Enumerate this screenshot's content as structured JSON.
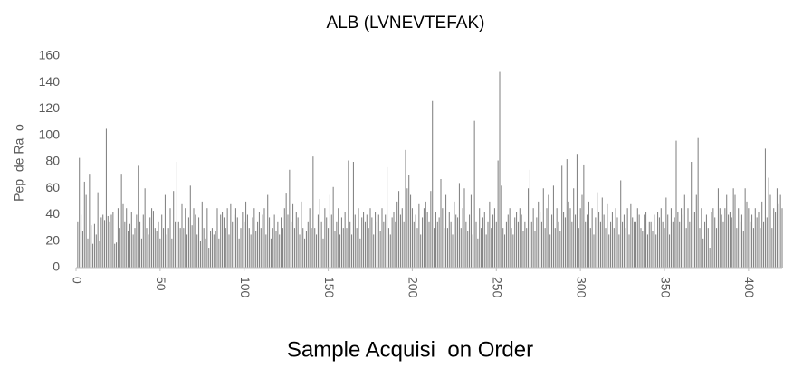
{
  "chart_data": {
    "type": "bar",
    "title": "ALB (LVNEVTEFAK)",
    "x_label": "Sample Acquisi  on Order",
    "y_label": "Pep  de Ra  o",
    "color": "#7f7f7f",
    "grid": false,
    "xlim": [
      0,
      420
    ],
    "xticks": [
      0,
      50,
      100,
      150,
      200,
      250,
      300,
      350,
      400
    ],
    "ylim": [
      0,
      160
    ],
    "yticks": [
      0,
      20,
      40,
      60,
      80,
      100,
      120,
      140,
      160
    ],
    "x": [
      1,
      2,
      3,
      4,
      5,
      6,
      7,
      8,
      9,
      10,
      11,
      12,
      13,
      14,
      15,
      16,
      17,
      18,
      19,
      20,
      21,
      22,
      23,
      24,
      25,
      26,
      27,
      28,
      29,
      30,
      31,
      32,
      33,
      34,
      35,
      36,
      37,
      38,
      39,
      40,
      41,
      42,
      43,
      44,
      45,
      46,
      47,
      48,
      49,
      50,
      51,
      52,
      53,
      54,
      55,
      56,
      57,
      58,
      59,
      60,
      61,
      62,
      63,
      64,
      65,
      66,
      67,
      68,
      69,
      70,
      71,
      72,
      73,
      74,
      75,
      76,
      77,
      78,
      79,
      80,
      81,
      82,
      83,
      84,
      85,
      86,
      87,
      88,
      89,
      90,
      91,
      92,
      93,
      94,
      95,
      96,
      97,
      98,
      99,
      100,
      101,
      102,
      103,
      104,
      105,
      106,
      107,
      108,
      109,
      110,
      111,
      112,
      113,
      114,
      115,
      116,
      117,
      118,
      119,
      120,
      121,
      122,
      123,
      124,
      125,
      126,
      127,
      128,
      129,
      130,
      131,
      132,
      133,
      134,
      135,
      136,
      137,
      138,
      139,
      140,
      141,
      142,
      143,
      144,
      145,
      146,
      147,
      148,
      149,
      150,
      151,
      152,
      153,
      154,
      155,
      156,
      157,
      158,
      159,
      160,
      161,
      162,
      163,
      164,
      165,
      166,
      167,
      168,
      169,
      170,
      171,
      172,
      173,
      174,
      175,
      176,
      177,
      178,
      179,
      180,
      181,
      182,
      183,
      184,
      185,
      186,
      187,
      188,
      189,
      190,
      191,
      192,
      193,
      194,
      195,
      196,
      197,
      198,
      199,
      200,
      201,
      202,
      203,
      204,
      205,
      206,
      207,
      208,
      209,
      210,
      211,
      212,
      213,
      214,
      215,
      216,
      217,
      218,
      219,
      220,
      221,
      222,
      223,
      224,
      225,
      226,
      227,
      228,
      229,
      230,
      231,
      232,
      233,
      234,
      235,
      236,
      237,
      238,
      239,
      240,
      241,
      242,
      243,
      244,
      245,
      246,
      247,
      248,
      249,
      250,
      251,
      252,
      253,
      254,
      255,
      256,
      257,
      258,
      259,
      260,
      261,
      262,
      263,
      264,
      265,
      266,
      267,
      268,
      269,
      270,
      271,
      272,
      273,
      274,
      275,
      276,
      277,
      278,
      279,
      280,
      281,
      282,
      283,
      284,
      285,
      286,
      287,
      288,
      289,
      290,
      291,
      292,
      293,
      294,
      295,
      296,
      297,
      298,
      299,
      300,
      301,
      302,
      303,
      304,
      305,
      306,
      307,
      308,
      309,
      310,
      311,
      312,
      313,
      314,
      315,
      316,
      317,
      318,
      319,
      320,
      321,
      322,
      323,
      324,
      325,
      326,
      327,
      328,
      329,
      330,
      331,
      332,
      333,
      334,
      335,
      336,
      337,
      338,
      339,
      340,
      341,
      342,
      343,
      344,
      345,
      346,
      347,
      348,
      349,
      350,
      351,
      352,
      353,
      354,
      355,
      356,
      357,
      358,
      359,
      360,
      361,
      362,
      363,
      364,
      365,
      366,
      367,
      368,
      369,
      370,
      371,
      372,
      373,
      374,
      375,
      376,
      377,
      378,
      379,
      380,
      381,
      382,
      383,
      384,
      385,
      386,
      387,
      388,
      389,
      390,
      391,
      392,
      393,
      394,
      395,
      396,
      397,
      398,
      399,
      400,
      401,
      402,
      403,
      404,
      405,
      406,
      407,
      408,
      409,
      410,
      411,
      412,
      413,
      414,
      415,
      416,
      417,
      418,
      419,
      420
    ],
    "values": [
      35,
      83,
      40,
      28,
      65,
      55,
      22,
      71,
      32,
      18,
      33,
      25,
      57,
      20,
      38,
      40,
      36,
      105,
      39,
      35,
      40,
      42,
      18,
      19,
      45,
      30,
      71,
      48,
      35,
      45,
      28,
      33,
      42,
      25,
      30,
      40,
      77,
      35,
      22,
      40,
      60,
      30,
      25,
      38,
      45,
      43,
      30,
      28,
      35,
      22,
      40,
      30,
      55,
      25,
      30,
      45,
      22,
      58,
      35,
      80,
      35,
      30,
      48,
      30,
      45,
      25,
      38,
      62,
      32,
      45,
      40,
      25,
      38,
      20,
      50,
      30,
      22,
      45,
      15,
      28,
      30,
      25,
      28,
      45,
      22,
      40,
      42,
      38,
      30,
      45,
      25,
      48,
      35,
      40,
      45,
      38,
      22,
      30,
      42,
      35,
      50,
      40,
      30,
      25,
      38,
      45,
      28,
      35,
      42,
      30,
      40,
      45,
      25,
      55,
      38,
      22,
      30,
      40,
      28,
      35,
      25,
      38,
      30,
      45,
      56,
      40,
      74,
      35,
      48,
      30,
      42,
      38,
      25,
      50,
      30,
      22,
      28,
      35,
      45,
      30,
      84,
      30,
      25,
      40,
      52,
      35,
      22,
      45,
      38,
      30,
      55,
      40,
      61,
      28,
      35,
      45,
      25,
      38,
      30,
      42,
      30,
      81,
      35,
      25,
      80,
      40,
      30,
      45,
      22,
      38,
      42,
      35,
      40,
      30,
      45,
      38,
      25,
      42,
      35,
      40,
      28,
      45,
      35,
      40,
      76,
      30,
      25,
      38,
      42,
      35,
      50,
      58,
      40,
      45,
      35,
      89,
      60,
      70,
      55,
      45,
      35,
      40,
      30,
      48,
      25,
      38,
      45,
      50,
      42,
      35,
      58,
      126,
      30,
      42,
      35,
      38,
      67,
      45,
      30,
      55,
      30,
      42,
      35,
      25,
      50,
      40,
      38,
      64,
      30,
      45,
      60,
      35,
      28,
      40,
      55,
      25,
      111,
      35,
      22,
      45,
      30,
      38,
      42,
      25,
      35,
      50,
      30,
      40,
      45,
      35,
      81,
      148,
      62,
      30,
      25,
      35,
      40,
      45,
      30,
      25,
      38,
      42,
      35,
      45,
      40,
      28,
      35,
      30,
      60,
      74,
      35,
      45,
      28,
      38,
      50,
      42,
      35,
      60,
      30,
      45,
      55,
      25,
      40,
      62,
      30,
      45,
      35,
      28,
      77,
      42,
      38,
      82,
      50,
      45,
      35,
      60,
      40,
      86,
      30,
      45,
      55,
      78,
      35,
      40,
      50,
      30,
      45,
      25,
      38,
      57,
      42,
      35,
      53,
      40,
      30,
      48,
      25,
      35,
      42,
      30,
      45,
      38,
      25,
      66,
      35,
      40,
      30,
      45,
      25,
      48,
      38,
      35,
      35,
      45,
      40,
      30,
      28,
      40,
      42,
      25,
      35,
      35,
      28,
      40,
      25,
      42,
      38,
      45,
      35,
      30,
      53,
      40,
      25,
      45,
      35,
      38,
      96,
      42,
      35,
      45,
      40,
      55,
      30,
      45,
      35,
      80,
      42,
      42,
      55,
      98,
      30,
      45,
      22,
      35,
      40,
      30,
      15,
      42,
      45,
      38,
      30,
      60,
      45,
      40,
      35,
      45,
      55,
      40,
      42,
      38,
      60,
      55,
      30,
      45,
      35,
      40,
      28,
      60,
      50,
      45,
      35,
      40,
      30,
      45,
      38,
      42,
      30,
      50,
      35,
      90,
      38,
      68,
      55,
      30,
      45,
      42,
      60,
      48,
      55,
      45
    ]
  }
}
